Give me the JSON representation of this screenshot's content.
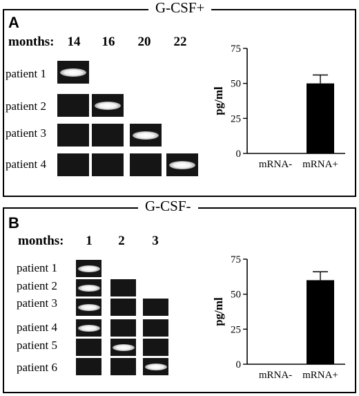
{
  "panelA": {
    "letter": "A",
    "title": "G-CSF+",
    "months_label": "months:",
    "months": [
      "14",
      "16",
      "20",
      "22"
    ],
    "patients": [
      "patient 1",
      "patient 2",
      "patient 3",
      "patient 4"
    ],
    "blot": [
      [
        true,
        false,
        false,
        false
      ],
      [
        false,
        true,
        false,
        false
      ],
      [
        false,
        false,
        true,
        false
      ],
      [
        false,
        false,
        false,
        true
      ]
    ]
  },
  "panelB": {
    "letter": "B",
    "title": "G-CSF-",
    "months_label": "months:",
    "months": [
      "1",
      "2",
      "3"
    ],
    "patients": [
      "patient 1",
      "patient 2",
      "patient 3",
      "patient 4",
      "patient 5",
      "patient 6"
    ],
    "blot": [
      [
        true,
        false,
        false
      ],
      [
        true,
        false,
        false
      ],
      [
        true,
        false,
        false
      ],
      [
        true,
        false,
        false
      ],
      [
        false,
        true,
        false
      ],
      [
        false,
        false,
        true
      ]
    ]
  },
  "chart_data": [
    {
      "type": "bar",
      "panel": "A",
      "categories": [
        "mRNA-",
        "mRNA+"
      ],
      "values": [
        0,
        50
      ],
      "errors": [
        0,
        6
      ],
      "ylabel": "pg/ml",
      "ylim": [
        0,
        75
      ],
      "yticks": [
        "0",
        "25",
        "50",
        "75"
      ],
      "color": "#000000"
    },
    {
      "type": "bar",
      "panel": "B",
      "categories": [
        "mRNA-",
        "mRNA+"
      ],
      "values": [
        0,
        60
      ],
      "errors": [
        0,
        6
      ],
      "ylabel": "pg/ml",
      "ylim": [
        0,
        75
      ],
      "yticks": [
        "0",
        "25",
        "50",
        "75"
      ],
      "color": "#000000"
    }
  ]
}
